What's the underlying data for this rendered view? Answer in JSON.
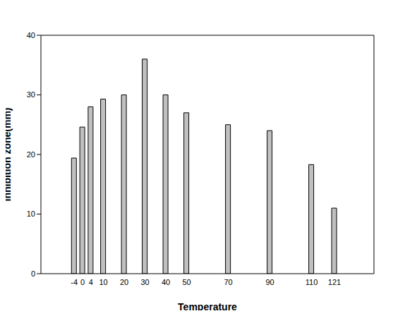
{
  "chart_data": {
    "type": "bar",
    "x_label": "Temperature",
    "y_label": "Inhibition zone(mm)",
    "x": [
      -4,
      0,
      4,
      10,
      20,
      30,
      40,
      50,
      70,
      90,
      110,
      121
    ],
    "values": [
      19.4,
      24.6,
      28,
      29.3,
      30,
      36,
      30,
      27,
      25,
      24,
      18.3,
      11
    ],
    "color": "#c0c0c0",
    "xlim": [
      -20,
      140
    ],
    "xticks": [
      -4,
      0,
      4,
      10,
      20,
      30,
      40,
      50,
      70,
      90,
      110,
      121
    ],
    "ylim": [
      0,
      40
    ],
    "yticks": [
      0,
      10,
      20,
      30,
      40
    ],
    "grid": false
  }
}
